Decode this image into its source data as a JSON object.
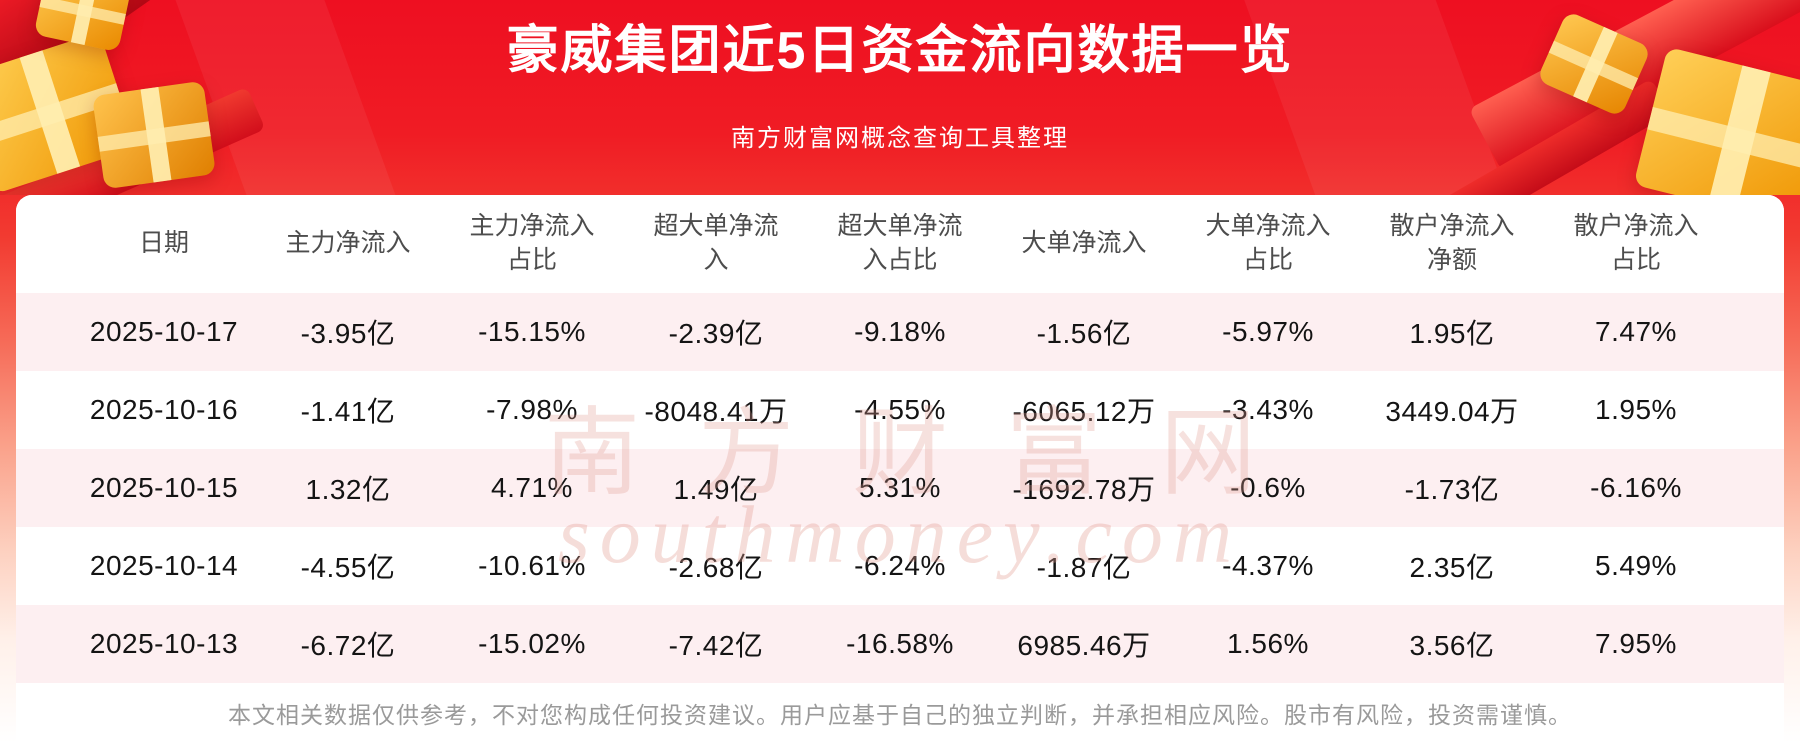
{
  "banner": {
    "title": "豪威集团近5日资金流向数据一览",
    "subtitle": "南方财富网概念查询工具整理"
  },
  "watermark": {
    "cn": "南方财富网",
    "en": "southmoney.com"
  },
  "footer": {
    "disclaimer": "本文相关数据仅供参考，不对您构成任何投资建议。用户应基于自己的独立判断，并承担相应风险。股市有风险，投资需谨慎。"
  },
  "colors": {
    "banner_red": "#ee1021",
    "row_alt_pink": "#fdeff1",
    "text_dark": "#141414",
    "header_gray": "#4d4d4d",
    "footer_gray": "#9a9a9a",
    "gift_gold": "#f39c00",
    "watermark_pink": "#e29c91"
  },
  "chart_data": {
    "type": "table",
    "title": "豪威集团近5日资金流向数据一览",
    "subtitle": "南方财富网概念查询工具整理",
    "columns": [
      "日期",
      "主力净流入",
      "主力净流入占比",
      "超大单净流入",
      "超大单净流入占比",
      "大单净流入",
      "大单净流入占比",
      "散户净流入净额",
      "散户净流入占比"
    ],
    "rows": [
      [
        "2025-10-17",
        "-3.95亿",
        "-15.15%",
        "-2.39亿",
        "-9.18%",
        "-1.56亿",
        "-5.97%",
        "1.95亿",
        "7.47%"
      ],
      [
        "2025-10-16",
        "-1.41亿",
        "-7.98%",
        "-8048.41万",
        "-4.55%",
        "-6065.12万",
        "-3.43%",
        "3449.04万",
        "1.95%"
      ],
      [
        "2025-10-15",
        "1.32亿",
        "4.71%",
        "1.49亿",
        "5.31%",
        "-1692.78万",
        "-0.6%",
        "-1.73亿",
        "-6.16%"
      ],
      [
        "2025-10-14",
        "-4.55亿",
        "-10.61%",
        "-2.68亿",
        "-6.24%",
        "-1.87亿",
        "-4.37%",
        "2.35亿",
        "5.49%"
      ],
      [
        "2025-10-13",
        "-6.72亿",
        "-15.02%",
        "-7.42亿",
        "-16.58%",
        "6985.46万",
        "1.56%",
        "3.56亿",
        "7.95%"
      ]
    ]
  }
}
